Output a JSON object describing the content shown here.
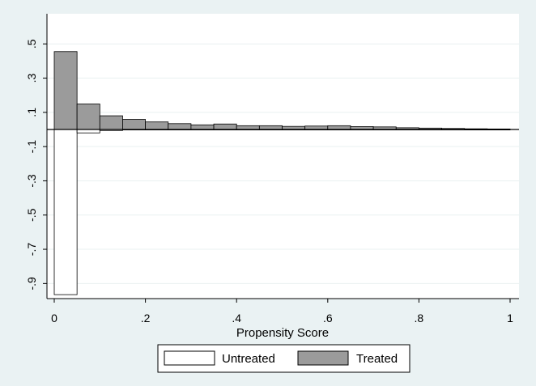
{
  "chart_data": {
    "type": "bar",
    "title": "",
    "xlabel": "Propensity Score",
    "ylabel": "",
    "xlim": [
      0,
      1
    ],
    "ylim": [
      -0.97,
      0.6
    ],
    "x_ticks": [
      {
        "value": 0,
        "label": "0"
      },
      {
        "value": 0.2,
        "label": ".2"
      },
      {
        "value": 0.4,
        "label": ".4"
      },
      {
        "value": 0.6,
        "label": ".6"
      },
      {
        "value": 0.8,
        "label": ".8"
      },
      {
        "value": 1,
        "label": "1"
      }
    ],
    "y_ticks": [
      {
        "value": 0.5,
        "label": ".5"
      },
      {
        "value": 0.3,
        "label": ".3"
      },
      {
        "value": 0.1,
        "label": ".1"
      },
      {
        "value": -0.1,
        "label": "-.1"
      },
      {
        "value": -0.3,
        "label": "-.3"
      },
      {
        "value": -0.5,
        "label": "-.5"
      },
      {
        "value": -0.7,
        "label": "-.7"
      },
      {
        "value": -0.9,
        "label": "-.9"
      }
    ],
    "grid": true,
    "bin_width": 0.05,
    "x": [
      0,
      0.05,
      0.1,
      0.15,
      0.2,
      0.25,
      0.3,
      0.35,
      0.4,
      0.45,
      0.5,
      0.55,
      0.6,
      0.65,
      0.7,
      0.75,
      0.8,
      0.85,
      0.9,
      0.95
    ],
    "series": [
      {
        "name": "Treated",
        "color": "#9b9b9b",
        "values": [
          0.455,
          0.149,
          0.08,
          0.059,
          0.044,
          0.034,
          0.027,
          0.032,
          0.022,
          0.022,
          0.018,
          0.02,
          0.022,
          0.017,
          0.015,
          0.01,
          0.008,
          0.006,
          0.004,
          0.003
        ]
      },
      {
        "name": "Untreated",
        "color": "#ffffff",
        "values": [
          -0.965,
          -0.02,
          -0.006,
          -0.002,
          -0.001,
          -0.001,
          -0.001,
          -0.001,
          -0.001,
          -0.001,
          -0.001,
          -0.001,
          -0.001,
          -0.001,
          -0.001,
          -0.001,
          -0.001,
          -0.001,
          -0.001,
          -0.001
        ]
      }
    ],
    "legend": {
      "position": "bottom",
      "items": [
        {
          "label": "Untreated",
          "color": "#ffffff"
        },
        {
          "label": "Treated",
          "color": "#9b9b9b"
        }
      ]
    },
    "colors": {
      "background": "#eaf2f3",
      "plot_background": "#ffffff",
      "grid": "#e9f0f1",
      "bar_edge": "#000000"
    }
  }
}
